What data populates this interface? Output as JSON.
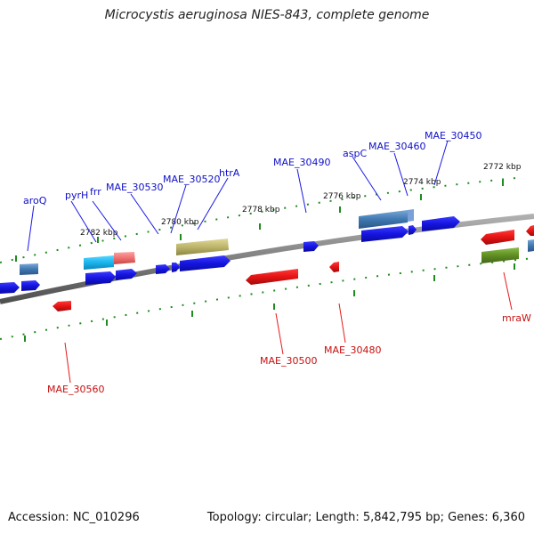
{
  "title": "Microcystis aeruginosa NIES-843, complete genome",
  "footer": {
    "accession": "Accession: NC_010296",
    "summary": "Topology: circular; Length: 5,842,795 bp; Genes: 6,360"
  },
  "scale_labels": [
    "2782 kbp",
    "2780 kbp",
    "2778 kbp",
    "2776 kbp",
    "2774 kbp",
    "2772 kbp"
  ],
  "forward_labels": [
    "aroQ",
    "pyrH",
    "frr",
    "MAE_30530",
    "MAE_30520",
    "htrA",
    "MAE_30490",
    "aspC",
    "MAE_30460",
    "MAE_30450"
  ],
  "reverse_labels": [
    "MAE_30560",
    "MAE_30500",
    "MAE_30480",
    "mraW"
  ],
  "colors": {
    "forward": "#1a1ae6",
    "reverse": "#e61a1a",
    "backbone": "#808080",
    "ticks": "#1e8c1e"
  }
}
